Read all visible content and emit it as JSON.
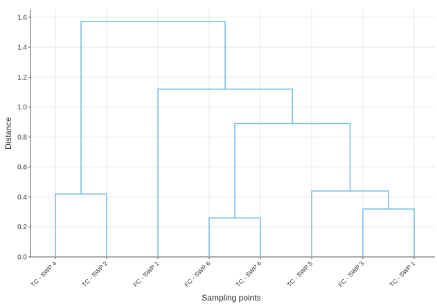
{
  "chart_data": {
    "type": "dendrogram",
    "title": "",
    "xlabel": "Sampling points",
    "ylabel": "Distance",
    "ylim": [
      0,
      1.65
    ],
    "yticks": [
      0.0,
      0.2,
      0.4,
      0.6,
      0.8,
      1.0,
      1.2,
      1.4,
      1.6
    ],
    "ytick_labels": [
      "0.0",
      "0.2",
      "0.4",
      "0.6",
      "0.8",
      "1.0",
      "1.2",
      "1.4",
      "1.6"
    ],
    "leaves": [
      "TC - SWP 4",
      "TC - SWP 2",
      "FC - SWP 1",
      "FC - SWP 6",
      "TC - SWP 6",
      "TC - SWP 5",
      "FC - SWP 3",
      "TC - SWP 1"
    ],
    "merges": [
      {
        "left": 0,
        "right": 1,
        "distance": 0.42
      },
      {
        "left": 3,
        "right": 4,
        "distance": 0.26
      },
      {
        "left": 6,
        "right": 7,
        "distance": 0.32
      },
      {
        "left": 5,
        "right": "n3",
        "distance": 0.44
      },
      {
        "left": "n2",
        "right": "n4",
        "distance": 0.89
      },
      {
        "left": 2,
        "right": "n5",
        "distance": 1.12
      },
      {
        "left": "n1",
        "right": "n6",
        "distance": 1.57
      }
    ],
    "grid": true,
    "line_color": "#79bfe3",
    "grid_color": "#e6e6e6",
    "axis_color": "#555555"
  }
}
